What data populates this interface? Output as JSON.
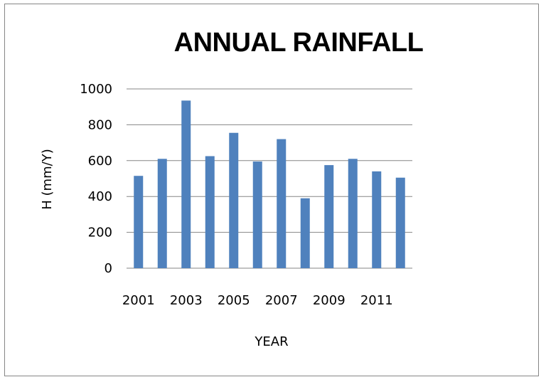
{
  "chart_data": {
    "type": "bar",
    "title": "ANNUAL RAINFALL",
    "xlabel": "YEAR",
    "ylabel": "H (mm/Y)",
    "categories": [
      "2001",
      "2002",
      "2003",
      "2004",
      "2005",
      "2006",
      "2007",
      "2008",
      "2009",
      "2010",
      "2011",
      "2012"
    ],
    "x_tick_labels": [
      "2001",
      "2003",
      "2005",
      "2007",
      "2009",
      "2011"
    ],
    "y_ticks": [
      0,
      200,
      400,
      600,
      800,
      1000
    ],
    "ylim": [
      0,
      1000
    ],
    "values": [
      515,
      610,
      935,
      625,
      755,
      595,
      720,
      390,
      575,
      610,
      540,
      505
    ],
    "bar_color": "#4F81BD",
    "grid": true,
    "legend": "none"
  }
}
